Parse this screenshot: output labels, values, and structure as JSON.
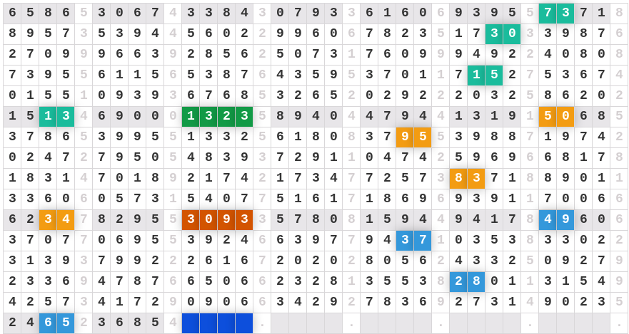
{
  "grid": {
    "rows": [
      "65865306743384307933616069395573718",
      "89573539445602299606782351730339876",
      "27099966392856250731760999492240808",
      "73955611565387643595370117152753674",
      "01551093936768532652029222032586202",
      "15134690001323589404479441319150685",
      "37865399551332561808379553988719742",
      "02472795054839372911047425969668178",
      "18314701892174217347725738371889011",
      "33606057315407751617186969391170066",
      "62347829553093357808159449417849606",
      "37077069553924663977943710353833022",
      "31393799222616720202805624332509279",
      "23369478766506623281355382801131549",
      "42573417290906634292783692731490235",
      "2465236854    .    .    .    .    ."
    ],
    "grey_rows": [
      0,
      5,
      10,
      15
    ],
    "highlights": [
      {
        "row": 0,
        "col": 30,
        "len": 2,
        "color": "#1abc9c"
      },
      {
        "row": 1,
        "col": 27,
        "len": 2,
        "color": "#1abc9c"
      },
      {
        "row": 3,
        "col": 26,
        "len": 2,
        "color": "#1abc9c"
      },
      {
        "row": 5,
        "col": 2,
        "len": 2,
        "color": "#1abc9c"
      },
      {
        "row": 5,
        "col": 10,
        "len": 4,
        "color": "#129a46"
      },
      {
        "row": 5,
        "col": 30,
        "len": 2,
        "color": "#f39c12"
      },
      {
        "row": 6,
        "col": 22,
        "len": 2,
        "color": "#f39c12"
      },
      {
        "row": 8,
        "col": 25,
        "len": 2,
        "color": "#f39c12"
      },
      {
        "row": 10,
        "col": 2,
        "len": 2,
        "color": "#f39c12"
      },
      {
        "row": 10,
        "col": 10,
        "len": 4,
        "color": "#d35400"
      },
      {
        "row": 10,
        "col": 30,
        "len": 2,
        "color": "#3498db"
      },
      {
        "row": 11,
        "col": 22,
        "len": 2,
        "color": "#3498db"
      },
      {
        "row": 13,
        "col": 25,
        "len": 2,
        "color": "#3498db"
      },
      {
        "row": 15,
        "col": 2,
        "len": 2,
        "color": "#3498db"
      },
      {
        "row": 15,
        "col": 10,
        "len": 4,
        "color": "#0d4fdc"
      }
    ]
  }
}
